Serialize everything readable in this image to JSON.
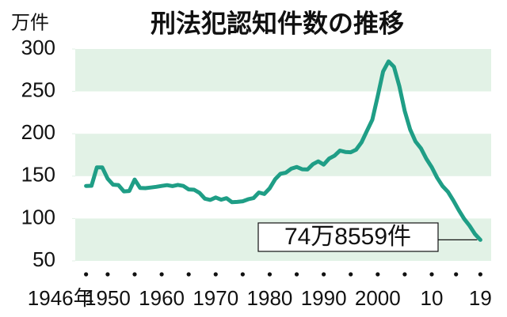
{
  "chart_data": {
    "type": "line",
    "title": "刑法犯認知件数の推移",
    "y_unit": "万件",
    "x": [
      1946,
      1947,
      1948,
      1949,
      1950,
      1951,
      1952,
      1953,
      1954,
      1955,
      1956,
      1957,
      1958,
      1959,
      1960,
      1961,
      1962,
      1963,
      1964,
      1965,
      1966,
      1967,
      1968,
      1969,
      1970,
      1971,
      1972,
      1973,
      1974,
      1975,
      1976,
      1977,
      1978,
      1979,
      1980,
      1981,
      1982,
      1983,
      1984,
      1985,
      1986,
      1987,
      1988,
      1989,
      1990,
      1991,
      1992,
      1993,
      1994,
      1995,
      1996,
      1997,
      1998,
      1999,
      2000,
      2001,
      2002,
      2003,
      2004,
      2005,
      2006,
      2007,
      2008,
      2009,
      2010,
      2011,
      2012,
      2013,
      2014,
      2015,
      2016,
      2017,
      2018,
      2019
    ],
    "series": [
      {
        "name": "刑法犯認知件数",
        "color": "#1f9e86",
        "values": [
          138.4,
          138.6,
          160.4,
          160.3,
          146.9,
          139.9,
          139.5,
          132.0,
          132.5,
          146.0,
          136.1,
          135.8,
          136.6,
          137.4,
          138.4,
          139.4,
          138.2,
          139.6,
          138.4,
          134.3,
          134.0,
          130.3,
          123.4,
          121.9,
          124.8,
          122.2,
          124.0,
          119.3,
          119.6,
          120.3,
          122.7,
          124.1,
          130.7,
          128.9,
          135.7,
          146.3,
          152.8,
          154.1,
          158.8,
          160.8,
          158.1,
          157.8,
          164.1,
          167.4,
          163.6,
          170.7,
          174.2,
          180.1,
          178.5,
          178.2,
          181.2,
          189.9,
          203.4,
          216.6,
          244.3,
          273.5,
          285.4,
          279.0,
          256.2,
          226.9,
          205.1,
          190.9,
          182.7,
          170.4,
          160.5,
          148.1,
          138.2,
          131.4,
          121.2,
          109.9,
          99.6,
          91.5,
          81.7,
          74.8559
        ]
      }
    ],
    "annotation": "74万8559件",
    "xlim": [
      1944,
      2021
    ],
    "xticks": [
      {
        "value": 1946,
        "label": "1946年"
      },
      1950,
      1960,
      1970,
      1980,
      1990,
      2000,
      {
        "value": 2010,
        "label": "10"
      },
      {
        "value": 2019,
        "label": "19"
      }
    ],
    "ylim": [
      50,
      300
    ],
    "yticks": [
      50,
      100,
      150,
      200,
      250,
      300
    ],
    "band_color": "#e2f2e6"
  }
}
